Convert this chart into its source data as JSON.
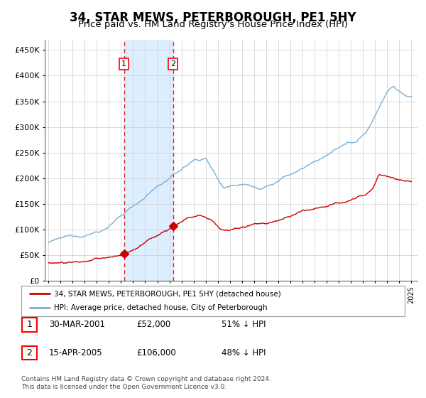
{
  "title": "34, STAR MEWS, PETERBOROUGH, PE1 5HY",
  "subtitle": "Price paid vs. HM Land Registry's House Price Index (HPI)",
  "title_fontsize": 12,
  "subtitle_fontsize": 9.5,
  "ylabel_ticks": [
    "£0",
    "£50K",
    "£100K",
    "£150K",
    "£200K",
    "£250K",
    "£300K",
    "£350K",
    "£400K",
    "£450K"
  ],
  "ytick_values": [
    0,
    50000,
    100000,
    150000,
    200000,
    250000,
    300000,
    350000,
    400000,
    450000
  ],
  "ylim": [
    0,
    470000
  ],
  "hpi_color": "#7ab0d4",
  "price_color": "#cc0000",
  "sale1_date": 2001.25,
  "sale1_price": 52000,
  "sale1_label": "1",
  "sale2_date": 2005.29,
  "sale2_price": 106000,
  "sale2_label": "2",
  "shading_color": "#ddeeff",
  "dashed_color": "#dd2222",
  "legend_line1": "34, STAR MEWS, PETERBOROUGH, PE1 5HY (detached house)",
  "legend_line2": "HPI: Average price, detached house, City of Peterborough",
  "table_row1": [
    "1",
    "30-MAR-2001",
    "£52,000",
    "51% ↓ HPI"
  ],
  "table_row2": [
    "2",
    "15-APR-2005",
    "£106,000",
    "48% ↓ HPI"
  ],
  "footer": "Contains HM Land Registry data © Crown copyright and database right 2024.\nThis data is licensed under the Open Government Licence v3.0.",
  "grid_color": "#cccccc"
}
